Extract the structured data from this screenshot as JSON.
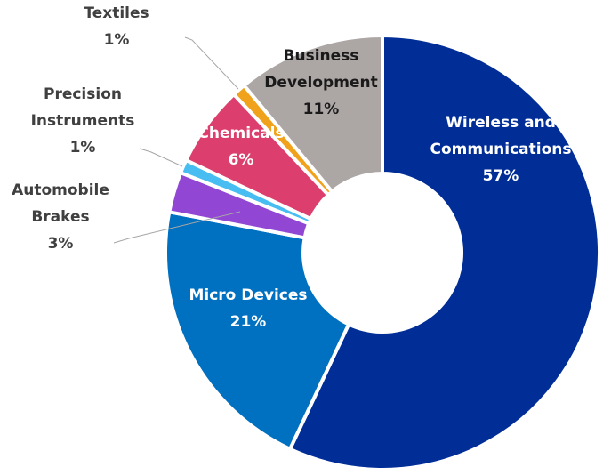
{
  "chart_data": {
    "type": "pie",
    "variant": "donut",
    "title": "",
    "start_angle_deg": 0,
    "direction": "clockwise",
    "slices": [
      {
        "label": "Wireless and Communications",
        "display": [
          "Wireless and",
          "Communications"
        ],
        "value_label": "57%",
        "value": 57,
        "color": "#002d96",
        "label_color": "#ffffff",
        "label_inside": true
      },
      {
        "label": "Micro Devices",
        "display": [
          "Micro Devices"
        ],
        "value_label": "21%",
        "value": 21,
        "color": "#0070c0",
        "label_color": "#ffffff",
        "label_inside": true
      },
      {
        "label": "Automobile Brakes",
        "display": [
          "Automobile",
          "Brakes"
        ],
        "value_label": "3%",
        "value": 3,
        "color": "#9147d4",
        "label_color": "#404040",
        "label_inside": false
      },
      {
        "label": "Precision Instruments",
        "display": [
          "Precision",
          "Instruments"
        ],
        "value_label": "1%",
        "value": 1,
        "color": "#48bdf2",
        "label_color": "#404040",
        "label_inside": false
      },
      {
        "label": "Chemicals",
        "display": [
          "Chemicals"
        ],
        "value_label": "6%",
        "value": 6,
        "color": "#dc3f6d",
        "label_color": "#ffffff",
        "label_inside": true
      },
      {
        "label": "Textiles",
        "display": [
          "Textiles"
        ],
        "value_label": "1%",
        "value": 1,
        "color": "#f0a21c",
        "label_color": "#404040",
        "label_inside": false
      },
      {
        "label": "Business Development",
        "display": [
          "Business",
          "Development"
        ],
        "value_label": "11%",
        "value": 11,
        "color": "#aca6a5",
        "label_color": "#1a1a1a",
        "label_inside": true
      }
    ]
  }
}
